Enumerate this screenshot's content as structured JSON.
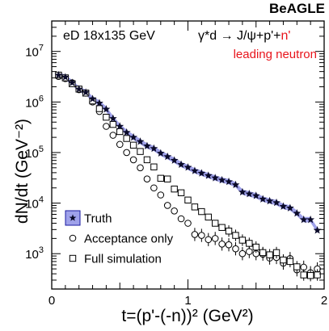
{
  "banner": "BeAGLE",
  "annotations": {
    "energy": "eD 18x135 GeV",
    "reaction_pre": "γ*d → J/ψ+p'+",
    "reaction_n": "n'",
    "leading": "leading neutron"
  },
  "colors": {
    "truth_band": "#9fa1ea",
    "truth_marker": "#0a0a28",
    "highlight": "#e8141b"
  },
  "chart_data": {
    "type": "scatter",
    "xlabel": "t=(p'-(-n))² (GeV²)",
    "ylabel": "dN/dt (GeV⁻²)",
    "xlim": [
      0,
      2
    ],
    "ylim": [
      200,
      40000000
    ],
    "yscale": "log",
    "x_ticks": [
      {
        "v": 0,
        "label": "0"
      },
      {
        "v": 1,
        "label": "1"
      },
      {
        "v": 2,
        "label": "2"
      }
    ],
    "y_ticks": [
      {
        "v": 1000,
        "base": "10",
        "exp": "3"
      },
      {
        "v": 10000,
        "base": "10",
        "exp": "4"
      },
      {
        "v": 100000,
        "base": "10",
        "exp": "5"
      },
      {
        "v": 1000000,
        "base": "10",
        "exp": "6"
      },
      {
        "v": 10000000,
        "base": "10",
        "exp": "7"
      }
    ],
    "legend_position": "bottom-left",
    "series": [
      {
        "name": "Truth",
        "marker": "star",
        "x": [
          0.05,
          0.1,
          0.15,
          0.2,
          0.25,
          0.3,
          0.35,
          0.4,
          0.45,
          0.5,
          0.55,
          0.6,
          0.65,
          0.7,
          0.75,
          0.8,
          0.85,
          0.9,
          0.95,
          1.0,
          1.05,
          1.1,
          1.15,
          1.2,
          1.25,
          1.3,
          1.35,
          1.4,
          1.45,
          1.5,
          1.55,
          1.6,
          1.65,
          1.7,
          1.75,
          1.8,
          1.85,
          1.9,
          1.95
        ],
        "y": [
          3400000,
          3100000,
          2400000,
          1800000,
          1550000,
          1150000,
          950000,
          720000,
          470000,
          330000,
          250000,
          200000,
          165000,
          135000,
          120000,
          97000,
          83000,
          70000,
          58000,
          51000,
          43500,
          39000,
          35000,
          31500,
          28500,
          26500,
          23000,
          16500,
          15200,
          14000,
          12000,
          11000,
          10200,
          8600,
          8000,
          6300,
          4700,
          4700,
          2900
        ]
      },
      {
        "name": "Acceptance only",
        "marker": "open-circle",
        "x": [
          0.05,
          0.1,
          0.15,
          0.2,
          0.25,
          0.3,
          0.35,
          0.4,
          0.45,
          0.5,
          0.55,
          0.6,
          0.65,
          0.7,
          0.75,
          0.8,
          0.85,
          0.9,
          0.95,
          1.0,
          1.05,
          1.1,
          1.15,
          1.2,
          1.25,
          1.3,
          1.35,
          1.4,
          1.45,
          1.5,
          1.55,
          1.6,
          1.65,
          1.7,
          1.75,
          1.8,
          1.85,
          1.9,
          1.95
        ],
        "y": [
          3200000,
          2900000,
          2400000,
          1750000,
          1500000,
          1000000,
          650000,
          330000,
          220000,
          145000,
          100000,
          72000,
          50000,
          30000,
          20000,
          14500,
          9000,
          7000,
          4900,
          4000,
          2400,
          2300,
          1900,
          2000,
          1550,
          1500,
          1250,
          1000,
          1100,
          1000,
          980,
          820,
          840,
          650,
          800,
          480,
          540,
          420,
          500
        ]
      },
      {
        "name": "Full simulation",
        "marker": "open-square",
        "x": [
          0.05,
          0.1,
          0.15,
          0.2,
          0.25,
          0.3,
          0.35,
          0.4,
          0.45,
          0.5,
          0.55,
          0.6,
          0.65,
          0.7,
          0.75,
          0.8,
          0.85,
          0.9,
          0.95,
          1.0,
          1.05,
          1.1,
          1.15,
          1.2,
          1.25,
          1.3,
          1.35,
          1.4,
          1.45,
          1.5,
          1.55,
          1.6,
          1.65,
          1.7,
          1.75,
          1.8,
          1.85,
          1.9,
          1.95
        ],
        "y": [
          3400000,
          3000000,
          2300000,
          1800000,
          1500000,
          1050000,
          740000,
          500000,
          360000,
          260000,
          190000,
          140000,
          105000,
          72000,
          52000,
          31000,
          30000,
          19000,
          16000,
          11500,
          8400,
          6800,
          5300,
          4000,
          3300,
          2800,
          2300,
          1850,
          1600,
          1350,
          1050,
          950,
          1050,
          750,
          700,
          550,
          380,
          370,
          380
        ]
      }
    ]
  },
  "legend": [
    {
      "label": "Truth",
      "marker": "star-box"
    },
    {
      "label": "Acceptance only",
      "marker": "open-circle"
    },
    {
      "label": "Full simulation",
      "marker": "open-square"
    }
  ]
}
